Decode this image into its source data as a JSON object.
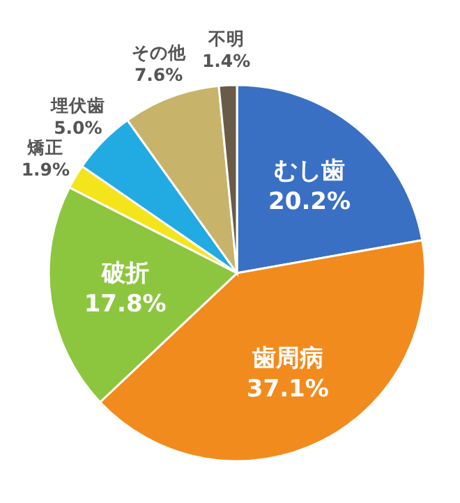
{
  "chart_data": {
    "type": "pie",
    "categories": [
      "むし歯",
      "歯周病",
      "破折",
      "矯正",
      "埋伏歯",
      "その他",
      "不明"
    ],
    "values": [
      20.2,
      37.1,
      17.8,
      1.9,
      5.0,
      7.6,
      1.4
    ],
    "colors": [
      "#3a70c4",
      "#f28b1e",
      "#8cc63e",
      "#f4e41c",
      "#22abe2",
      "#c8b36b",
      "#6a5a48"
    ],
    "value_labels": [
      "20.2%",
      "37.1%",
      "17.8%",
      "1.9%",
      "5.0%",
      "7.6%",
      "1.4%"
    ]
  }
}
